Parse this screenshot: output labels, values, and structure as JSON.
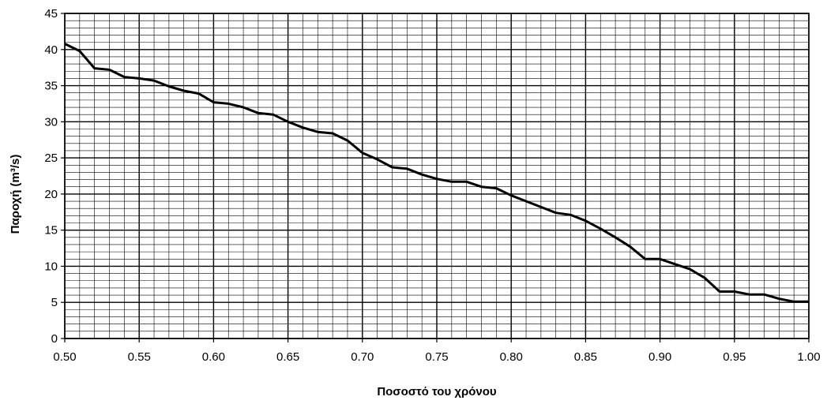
{
  "chart_data": {
    "type": "line",
    "xlabel": "Ποσοστό του χρόνου",
    "ylabel": "Παροχή (m³/s)",
    "xlim": [
      0.5,
      1.0
    ],
    "ylim": [
      0,
      45
    ],
    "x_ticks": [
      "0.50",
      "0.55",
      "0.60",
      "0.65",
      "0.70",
      "0.75",
      "0.80",
      "0.85",
      "0.90",
      "0.95",
      "1.00"
    ],
    "y_ticks": [
      "0",
      "5",
      "10",
      "15",
      "20",
      "25",
      "30",
      "35",
      "40",
      "45"
    ],
    "grid": true,
    "series": [
      {
        "x": [
          0.5,
          0.51,
          0.52,
          0.53,
          0.54,
          0.55,
          0.56,
          0.57,
          0.58,
          0.59,
          0.6,
          0.61,
          0.62,
          0.63,
          0.64,
          0.65,
          0.66,
          0.67,
          0.68,
          0.69,
          0.7,
          0.71,
          0.72,
          0.73,
          0.74,
          0.75,
          0.76,
          0.77,
          0.78,
          0.79,
          0.8,
          0.81,
          0.82,
          0.83,
          0.84,
          0.85,
          0.86,
          0.87,
          0.88,
          0.89,
          0.9,
          0.91,
          0.92,
          0.93,
          0.94,
          0.95,
          0.96,
          0.97,
          0.98,
          0.99,
          1.0
        ],
        "values": [
          40.8,
          39.8,
          37.4,
          37.2,
          36.2,
          36.0,
          35.7,
          34.9,
          34.3,
          33.9,
          32.7,
          32.5,
          32.0,
          31.2,
          31.0,
          30.0,
          29.2,
          28.6,
          28.4,
          27.4,
          25.7,
          24.8,
          23.7,
          23.5,
          22.7,
          22.1,
          21.7,
          21.7,
          21.0,
          20.8,
          19.8,
          19.0,
          18.2,
          17.4,
          17.1,
          16.3,
          15.2,
          14.0,
          12.7,
          11.0,
          11.0,
          10.3,
          9.6,
          8.4,
          6.5,
          6.5,
          6.1,
          6.1,
          5.5,
          5.1,
          5.1
        ]
      }
    ]
  }
}
